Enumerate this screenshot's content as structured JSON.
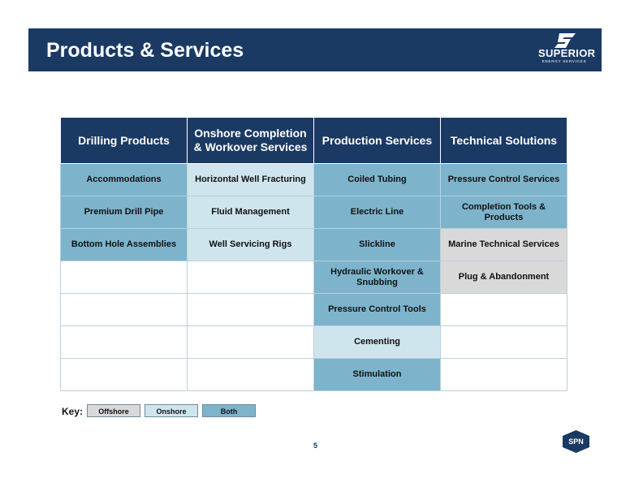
{
  "header": {
    "title": "Products & Services",
    "logo_text": "SUPERIOR",
    "logo_subtext": "ENERGY SERVICES"
  },
  "table": {
    "columns": [
      "Drilling Products",
      "Onshore Completion & Workover Services",
      "Production Services",
      "Technical Solutions"
    ],
    "rows": [
      [
        {
          "text": "Accommodations",
          "type": "both"
        },
        {
          "text": "Horizontal Well Fracturing",
          "type": "onshore"
        },
        {
          "text": "Coiled Tubing",
          "type": "both"
        },
        {
          "text": "Pressure Control Services",
          "type": "both"
        }
      ],
      [
        {
          "text": "Premium Drill Pipe",
          "type": "both"
        },
        {
          "text": "Fluid Management",
          "type": "onshore"
        },
        {
          "text": "Electric Line",
          "type": "both"
        },
        {
          "text": "Completion Tools & Products",
          "type": "both"
        }
      ],
      [
        {
          "text": "Bottom Hole Assemblies",
          "type": "both"
        },
        {
          "text": "Well Servicing Rigs",
          "type": "onshore"
        },
        {
          "text": "Slickline",
          "type": "both"
        },
        {
          "text": "Marine Technical Services",
          "type": "offshore"
        }
      ],
      [
        {
          "text": "",
          "type": "empty"
        },
        {
          "text": "",
          "type": "empty"
        },
        {
          "text": "Hydraulic Workover & Snubbing",
          "type": "both"
        },
        {
          "text": "Plug & Abandonment",
          "type": "offshore"
        }
      ],
      [
        {
          "text": "",
          "type": "empty"
        },
        {
          "text": "",
          "type": "empty"
        },
        {
          "text": "Pressure Control Tools",
          "type": "both"
        },
        {
          "text": "",
          "type": "empty"
        }
      ],
      [
        {
          "text": "",
          "type": "empty"
        },
        {
          "text": "",
          "type": "empty"
        },
        {
          "text": "Cementing",
          "type": "onshore"
        },
        {
          "text": "",
          "type": "empty"
        }
      ],
      [
        {
          "text": "",
          "type": "empty"
        },
        {
          "text": "",
          "type": "empty"
        },
        {
          "text": "Stimulation",
          "type": "both"
        },
        {
          "text": "",
          "type": "empty"
        }
      ]
    ]
  },
  "key": {
    "label": "Key:",
    "offshore": "Offshore",
    "onshore": "Onshore",
    "both": "Both"
  },
  "colors": {
    "navy": "#1b3a63",
    "both": "#7db4cc",
    "onshore": "#cfe5ee",
    "offshore": "#d9d9d9"
  },
  "footer": {
    "page_number": "5",
    "badge": "SPN"
  }
}
